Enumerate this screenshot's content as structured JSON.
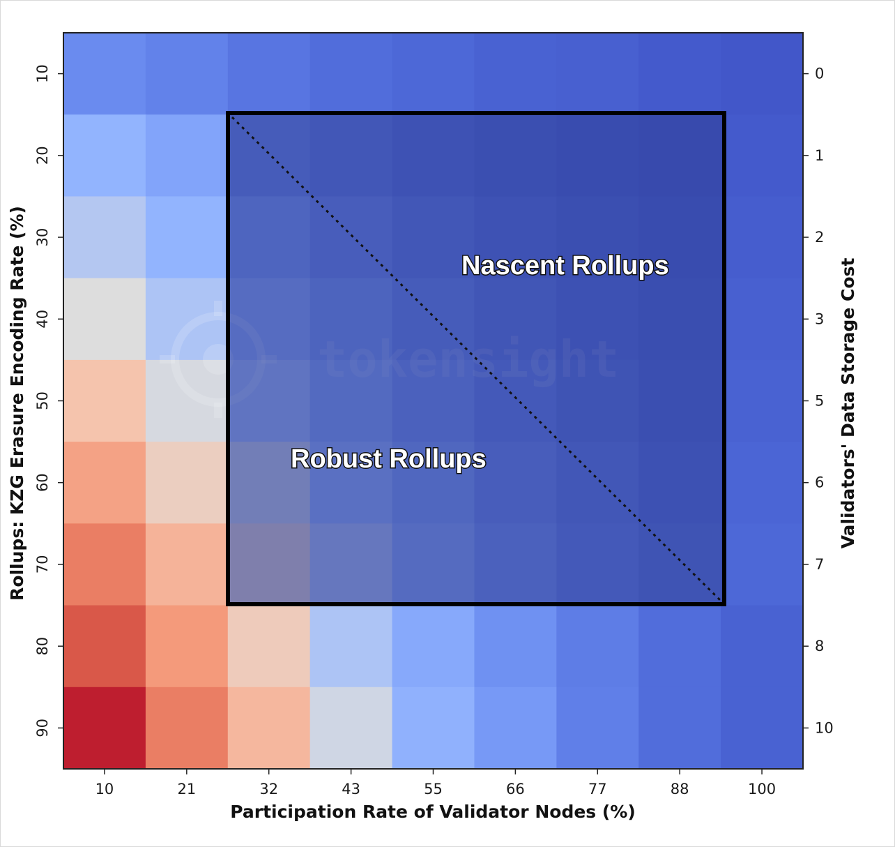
{
  "chart_data": {
    "type": "heatmap",
    "xlabel": "Participation Rate of Validator Nodes (%)",
    "ylabel": "Rollups: KZG Erasure Encoding Rate (%)",
    "y2label": "Validators' Data Storage Cost",
    "x_ticks": [
      "10",
      "21",
      "32",
      "43",
      "55",
      "66",
      "77",
      "88",
      "100"
    ],
    "y_ticks": [
      "10",
      "20",
      "30",
      "40",
      "50",
      "60",
      "70",
      "80",
      "90"
    ],
    "y2_ticks": [
      "0",
      "1",
      "2",
      "3",
      "5",
      "6",
      "7",
      "8",
      "10"
    ],
    "colormap": "coolwarm",
    "color_range": [
      0,
      10
    ],
    "values": [
      [
        2.3,
        2.0,
        1.5,
        1.2,
        1.0,
        0.8,
        0.7,
        0.5,
        0.4
      ],
      [
        3.8,
        3.2,
        2.2,
        1.8,
        1.4,
        1.1,
        0.9,
        0.7,
        0.5
      ],
      [
        4.4,
        3.8,
        2.9,
        2.3,
        1.8,
        1.4,
        1.1,
        0.9,
        0.6
      ],
      [
        5.0,
        4.3,
        3.5,
        2.8,
        2.2,
        1.7,
        1.3,
        1.0,
        0.7
      ],
      [
        6.0,
        4.9,
        4.1,
        3.3,
        2.6,
        2.0,
        1.5,
        1.1,
        0.8
      ],
      [
        6.8,
        5.6,
        4.7,
        3.8,
        3.0,
        2.3,
        1.8,
        1.3,
        0.9
      ],
      [
        7.6,
        6.4,
        5.3,
        4.3,
        3.4,
        2.6,
        2.0,
        1.5,
        1.0
      ],
      [
        8.5,
        7.0,
        5.7,
        4.3,
        3.4,
        2.5,
        1.8,
        1.2,
        0.8
      ],
      [
        9.6,
        7.6,
        6.3,
        4.8,
        3.7,
        2.8,
        1.9,
        1.2,
        0.8
      ]
    ],
    "grid": false
  },
  "overlay": {
    "box_label_upper": "Nascent Rollups",
    "box_label_lower": "Robust Rollups",
    "box_fill": "#2b3990",
    "box_fill_opacity": 0.55,
    "diagonal_style": "dotted"
  },
  "watermark": {
    "text": "tokensight",
    "icon": "crosshair-logo-icon"
  }
}
